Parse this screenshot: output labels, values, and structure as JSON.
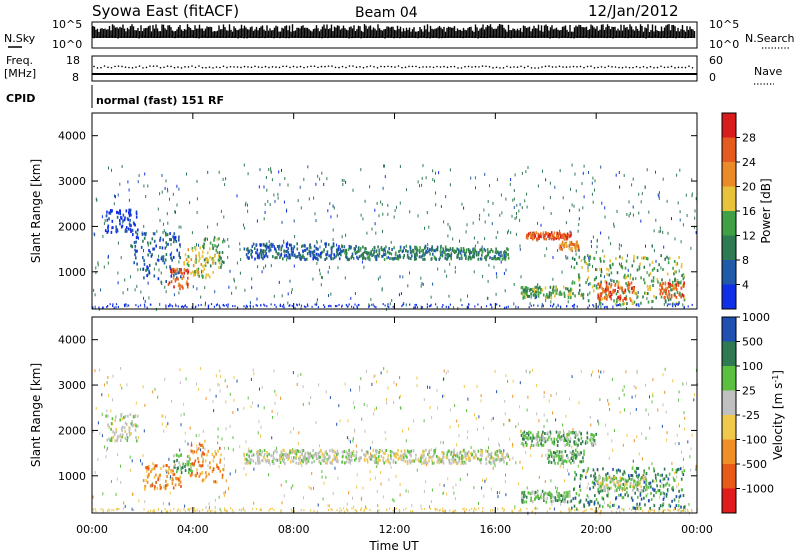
{
  "header": {
    "station": "Syowa East (fitACF)",
    "beam": "Beam 04",
    "date": "12/Jan/2012"
  },
  "housekeeping": {
    "nsky_label": "N.Sky",
    "nsearch_label": "N.Search",
    "sky_axis_top": "10^5",
    "sky_axis_bottom": "10^0",
    "freq_label_1": "Freq.",
    "freq_label_2": "[MHz]",
    "freq_axis_top": "18",
    "freq_axis_bottom": "8",
    "nave_label": "Nave",
    "nave_axis_top": "60",
    "nave_axis_bottom": "0",
    "cpid_label": "CPID",
    "cpid_value": "normal (fast) 151 RF"
  },
  "x_axis": {
    "label": "Time UT",
    "ticks": [
      "00:00",
      "04:00",
      "08:00",
      "12:00",
      "16:00",
      "20:00",
      "00:00"
    ]
  },
  "colors": {
    "power": [
      "#1030e8",
      "#205aa8",
      "#2e7a52",
      "#3fa046",
      "#e8c23a",
      "#ea8a28",
      "#e55a1e",
      "#d81c1c"
    ],
    "velocity": [
      "#e01b1b",
      "#e85a18",
      "#f08f25",
      "#f0c84c",
      "#c0c0c0",
      "#5bc040",
      "#2f7a52",
      "#2050b0"
    ]
  },
  "chart_data": [
    {
      "type": "heatmap",
      "name": "Power",
      "ylabel": "Slant Range [km]",
      "xlabel": "",
      "x_range_hours": [
        0,
        24
      ],
      "ylim": [
        180,
        4500
      ],
      "y_ticks": [
        1000,
        2000,
        3000,
        4000
      ],
      "colorbar_label": "Power [dB]",
      "colorbar_ticks": [
        "4",
        "8",
        "12",
        "16",
        "20",
        "24",
        "28"
      ],
      "regions": [
        {
          "t": [
            0.5,
            1.8
          ],
          "r": [
            1900,
            2400
          ],
          "level": 0
        },
        {
          "t": [
            1.5,
            3.5
          ],
          "r": [
            800,
            1900
          ],
          "level": 1
        },
        {
          "t": [
            3.0,
            3.8
          ],
          "r": [
            650,
            1100
          ],
          "level": 6
        },
        {
          "t": [
            3.6,
            4.8
          ],
          "r": [
            900,
            1600
          ],
          "level": 4
        },
        {
          "t": [
            4.4,
            5.2
          ],
          "r": [
            1100,
            1800
          ],
          "level": 3
        },
        {
          "t": [
            6.0,
            10.0
          ],
          "r": [
            1300,
            1650
          ],
          "level": 1
        },
        {
          "t": [
            10.0,
            14.0
          ],
          "r": [
            1300,
            1600
          ],
          "level": 2
        },
        {
          "t": [
            14.0,
            16.5
          ],
          "r": [
            1300,
            1550
          ],
          "level": 2
        },
        {
          "t": [
            17.2,
            19.0
          ],
          "r": [
            1750,
            1900
          ],
          "level": 6
        },
        {
          "t": [
            18.5,
            19.3
          ],
          "r": [
            1500,
            1700
          ],
          "level": 5
        },
        {
          "t": [
            17.0,
            19.0
          ],
          "r": [
            450,
            700
          ],
          "level": 3
        },
        {
          "t": [
            19.0,
            23.5
          ],
          "r": [
            300,
            1400
          ],
          "level": 3
        },
        {
          "t": [
            20.0,
            21.5
          ],
          "r": [
            400,
            800
          ],
          "level": 6
        },
        {
          "t": [
            22.5,
            23.5
          ],
          "r": [
            450,
            800
          ],
          "level": 6
        }
      ]
    },
    {
      "type": "heatmap",
      "name": "Velocity",
      "ylabel": "Slant Range [km]",
      "xlabel": "Time UT",
      "x_range_hours": [
        0,
        24
      ],
      "ylim": [
        180,
        4500
      ],
      "y_ticks": [
        1000,
        2000,
        3000,
        4000
      ],
      "colorbar_label": "Velocity [m s^-1]",
      "colorbar_ticks": [
        "-1000",
        "-500",
        "-100",
        "-25",
        "25",
        "100",
        "500",
        "1000"
      ],
      "regions": [
        {
          "t": [
            0.5,
            1.8
          ],
          "r": [
            1800,
            2400
          ],
          "level": 4
        },
        {
          "t": [
            2.0,
            3.5
          ],
          "r": [
            700,
            1300
          ],
          "level": 2
        },
        {
          "t": [
            3.2,
            4.0
          ],
          "r": [
            1100,
            1500
          ],
          "level": 5
        },
        {
          "t": [
            3.8,
            5.2
          ],
          "r": [
            900,
            1800
          ],
          "level": 2
        },
        {
          "t": [
            6.0,
            16.5
          ],
          "r": [
            1300,
            1600
          ],
          "level": 4
        },
        {
          "t": [
            17.0,
            20.0
          ],
          "r": [
            1700,
            2000
          ],
          "level": 5
        },
        {
          "t": [
            18.0,
            19.5
          ],
          "r": [
            1300,
            1600
          ],
          "level": 5
        },
        {
          "t": [
            17.0,
            19.0
          ],
          "r": [
            450,
            700
          ],
          "level": 5
        },
        {
          "t": [
            19.0,
            23.5
          ],
          "r": [
            300,
            1200
          ],
          "level": 6
        },
        {
          "t": [
            20.0,
            22.0
          ],
          "r": [
            700,
            1000
          ],
          "level": 4
        }
      ]
    }
  ]
}
